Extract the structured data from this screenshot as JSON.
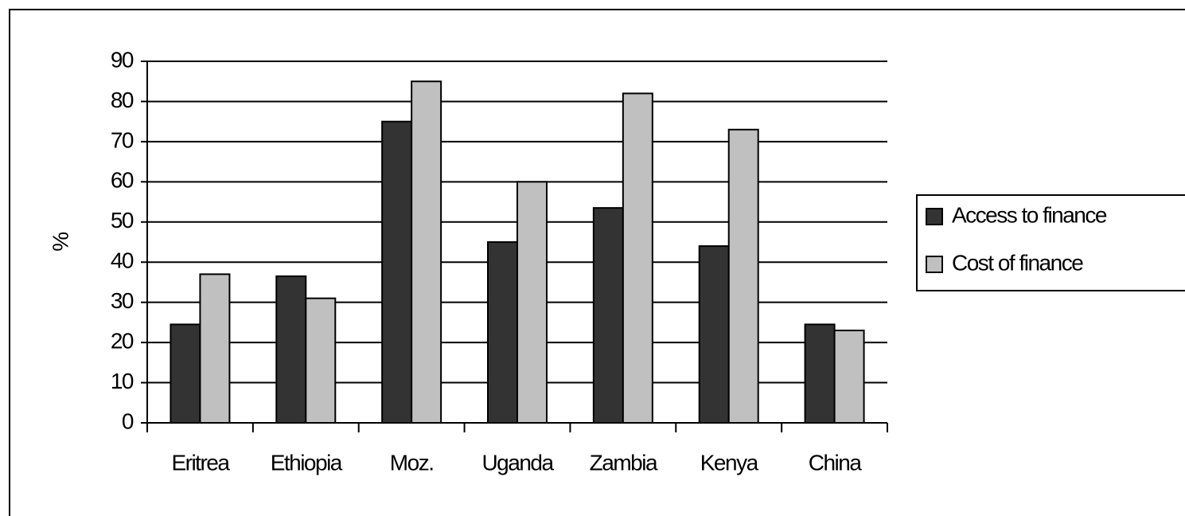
{
  "chart_data": {
    "type": "bar",
    "y_label": "%",
    "categories": [
      "Eritrea",
      "Ethiopia",
      "Moz.",
      "Uganda",
      "Zambia",
      "Kenya",
      "China"
    ],
    "series": [
      {
        "name": "Access to finance",
        "color": "#333333",
        "values": [
          24.5,
          36.5,
          75,
          45,
          53.5,
          44,
          24.5
        ]
      },
      {
        "name": "Cost of finance",
        "color": "#c0c0c0",
        "values": [
          37,
          31,
          85,
          60,
          82,
          73,
          23
        ]
      }
    ],
    "ylim": [
      0,
      90
    ],
    "yticks": [
      0,
      10,
      20,
      30,
      40,
      50,
      60,
      70,
      80,
      90
    ],
    "grid": true,
    "legend": "right"
  }
}
